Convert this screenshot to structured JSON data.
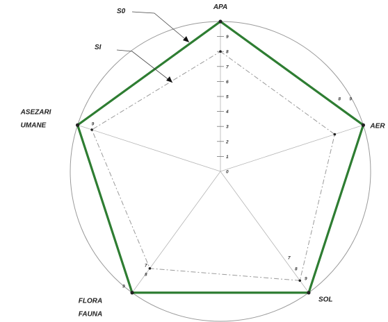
{
  "chart_data": {
    "type": "radar",
    "title": "",
    "axes": [
      "APA",
      "AER",
      "SOL",
      "FLORA FAUNA",
      "ASEZARI UMANE"
    ],
    "axis_label_lines": [
      [
        "APA"
      ],
      [
        "AER"
      ],
      [
        "SOL"
      ],
      [
        "FLORA",
        "FAUNA"
      ],
      [
        "ASEZARI",
        "UMANE"
      ]
    ],
    "range": [
      0,
      10
    ],
    "ticks": [
      "0",
      "1",
      "2",
      "3",
      "4",
      "5",
      "6",
      "7",
      "8",
      "9"
    ],
    "series": [
      {
        "name": "S0",
        "values": [
          10,
          10,
          10,
          10,
          10
        ],
        "color": "#2e7d32"
      },
      {
        "name": "SI",
        "values": [
          8,
          8,
          9,
          8,
          9
        ],
        "color": "#9a9a9a"
      }
    ],
    "value_labels": [
      {
        "axis": "AER",
        "text": "8"
      },
      {
        "axis": "AER",
        "text": "9"
      },
      {
        "axis": "SOL",
        "text": "7"
      },
      {
        "axis": "SOL",
        "text": "8"
      },
      {
        "axis": "SOL",
        "text": "9"
      },
      {
        "axis": "FLORA FAUNA",
        "text": "7"
      },
      {
        "axis": "FLORA FAUNA",
        "text": "8"
      },
      {
        "axis": "FLORA FAUNA",
        "text": "9"
      },
      {
        "axis": "ASEZARI UMANE",
        "text": "9"
      }
    ]
  }
}
